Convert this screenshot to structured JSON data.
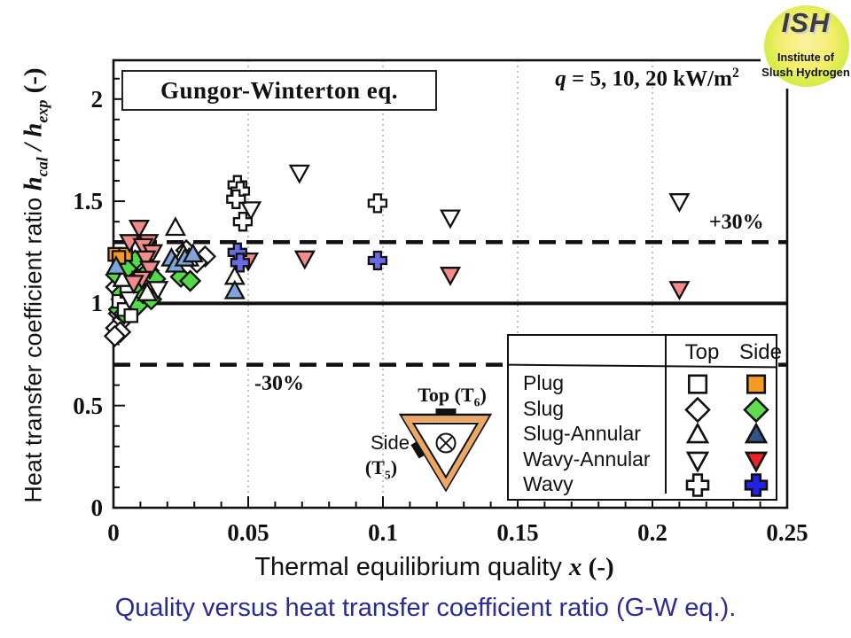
{
  "title_box": "Gungor-Winterton eq.",
  "heat_flux_label": {
    "var": "q",
    "rest": " = 5, 10, 20 kW/m",
    "sup": "2"
  },
  "annotations": {
    "plus30": "+30%",
    "minus30": "-30%"
  },
  "axes": {
    "x": {
      "label_text": "Thermal equilibrium quality ",
      "label_var": "x",
      "label_unit": " (-)",
      "ticks": [
        "0",
        "0.05",
        "0.1",
        "0.15",
        "0.2",
        "0.25"
      ],
      "tick_values": [
        0,
        0.05,
        0.1,
        0.15,
        0.2,
        0.25
      ],
      "minor_step": 0.01
    },
    "y": {
      "label_text": "Heat transfer coefficient ratio ",
      "h1": "h",
      "sub1": "cal",
      "slash": " / ",
      "h2": "h",
      "sub2": "exp",
      "label_unit": " (-)",
      "ticks": [
        "0",
        "0.5",
        "1",
        "1.5",
        "2"
      ],
      "tick_values": [
        0,
        0.5,
        1,
        1.5,
        2
      ],
      "minor_step": 0.1
    }
  },
  "legend": {
    "headers": {
      "top": "Top",
      "side": "Side"
    },
    "rows": [
      {
        "label": "Plug",
        "marker": "square",
        "side_color": "#F59A23"
      },
      {
        "label": "Slug",
        "marker": "diamond",
        "side_color": "#5FDC50"
      },
      {
        "label": "Slug-Annular",
        "marker": "triangle-up",
        "side_color": "#2F5589"
      },
      {
        "label": "Wavy-Annular",
        "marker": "triangle-down",
        "side_color": "#E8232A"
      },
      {
        "label": "Wavy",
        "marker": "cross",
        "side_color": "#2121E8"
      }
    ]
  },
  "inset": {
    "top_main": "Top (T",
    "top_sub": "6",
    "top_close": ")",
    "side_word": "Side",
    "side_main": "(T",
    "side_sub": "5",
    "side_close": ")",
    "tube_border_color": "#EDA765"
  },
  "logo": {
    "title": "ISH",
    "line1": "Institute of",
    "line2": "Slush Hydrogen"
  },
  "caption": "Quality versus heat transfer coefficient ratio (G-W eq.).",
  "chart_data": {
    "type": "scatter",
    "title": "Gungor-Winterton eq.",
    "xlabel": "Thermal equilibrium quality x (-)",
    "ylabel": "Heat transfer coefficient ratio h_cal / h_exp (-)",
    "xlim": [
      0,
      0.25
    ],
    "ylim": [
      0,
      2.19
    ],
    "x_gridlines": [
      0.05,
      0.1,
      0.15,
      0.2
    ],
    "grid": "vertical-dotted",
    "legend_position": "lower-right",
    "reference_lines": [
      {
        "y": 1.0,
        "style": "solid",
        "label": ""
      },
      {
        "y": 1.3,
        "style": "dashed",
        "label": "+30%"
      },
      {
        "y": 0.7,
        "style": "dashed",
        "label": "-30%"
      }
    ],
    "series": [
      {
        "name": "Slug Top",
        "marker": "diamond",
        "fill": "#FFFFFF",
        "points": [
          [
            0.001,
            0.88
          ],
          [
            0.002,
            0.95
          ],
          [
            0.0035,
            0.92
          ],
          [
            0.005,
            1.05
          ],
          [
            0.003,
            1.02
          ],
          [
            0.006,
            0.98
          ],
          [
            0.0075,
            1.0
          ],
          [
            0.001,
            1.08
          ],
          [
            0.0025,
            0.86
          ],
          [
            0.0045,
            1.1
          ],
          [
            0.0085,
            1.06
          ],
          [
            0.0105,
            1.12
          ],
          [
            0.0005,
            0.84
          ],
          [
            0.0075,
            1.13
          ],
          [
            0.027,
            1.26
          ],
          [
            0.034,
            1.23
          ],
          [
            0.031,
            1.2
          ]
        ]
      },
      {
        "name": "Slug Side",
        "marker": "diamond",
        "fill": "#54D948",
        "points": [
          [
            0.008,
            1.21
          ],
          [
            0.005,
            1.17
          ],
          [
            0.013,
            1.16
          ],
          [
            0.009,
            1.12
          ],
          [
            0.025,
            1.13
          ],
          [
            0.0285,
            1.11
          ],
          [
            0.003,
            1.05
          ],
          [
            0.006,
            1.02
          ],
          [
            0.002,
            0.97
          ],
          [
            0.009,
            0.99
          ],
          [
            0.004,
            0.95
          ],
          [
            0.011,
            1.05
          ],
          [
            0.0075,
            1.08
          ],
          [
            0.014,
            1.02
          ],
          [
            0.0155,
            1.12
          ],
          [
            0.001,
            1.14
          ]
        ]
      },
      {
        "name": "Plug Top",
        "marker": "square",
        "fill": "#FFFFFF",
        "points": [
          [
            0.002,
            1.01
          ],
          [
            0.005,
            1.06
          ],
          [
            0.004,
            0.97
          ],
          [
            0.0065,
            0.94
          ]
        ]
      },
      {
        "name": "Plug Side",
        "marker": "square",
        "fill": "#F59A23",
        "points": [
          [
            0.0005,
            1.24
          ],
          [
            0.0045,
            1.24
          ],
          [
            0.002,
            1.225
          ]
        ]
      },
      {
        "name": "Slug-Annular Top",
        "marker": "triangle-up",
        "fill": "#FFFFFF",
        "points": [
          [
            0.023,
            1.37
          ],
          [
            0.026,
            1.24
          ],
          [
            0.028,
            1.22
          ],
          [
            0.045,
            1.13
          ],
          [
            0.0125,
            1.05
          ],
          [
            0.0035,
            1.12
          ]
        ]
      },
      {
        "name": "Slug-Annular Side",
        "marker": "triangle-up",
        "fill": "#7EA4D9",
        "points": [
          [
            0.0215,
            1.22
          ],
          [
            0.023,
            1.19
          ],
          [
            0.0265,
            1.22
          ],
          [
            0.0295,
            1.24
          ],
          [
            0.045,
            1.06
          ],
          [
            0.001,
            1.18
          ]
        ]
      },
      {
        "name": "Wavy-Annular Top",
        "marker": "triangle-down",
        "fill": "#FFFFFF",
        "points": [
          [
            0.069,
            1.64
          ],
          [
            0.051,
            1.46
          ],
          [
            0.125,
            1.42
          ],
          [
            0.21,
            1.5
          ],
          [
            0.0165,
            1.07
          ],
          [
            0.006,
            1.02
          ]
        ]
      },
      {
        "name": "Wavy-Annular Side",
        "marker": "triangle-down",
        "fill": "#F48B8B",
        "points": [
          [
            0.0095,
            1.37
          ],
          [
            0.006,
            1.3
          ],
          [
            0.013,
            1.3
          ],
          [
            0.011,
            1.28
          ],
          [
            0.0145,
            1.25
          ],
          [
            0.012,
            1.22
          ],
          [
            0.0135,
            1.17
          ],
          [
            0.0105,
            1.12
          ],
          [
            0.0075,
            1.1
          ],
          [
            0.05,
            1.21
          ],
          [
            0.071,
            1.22
          ],
          [
            0.125,
            1.14
          ],
          [
            0.21,
            1.07
          ]
        ]
      },
      {
        "name": "Wavy Top",
        "marker": "cross",
        "fill": "#FFFFFF",
        "points": [
          [
            0.046,
            1.58
          ],
          [
            0.047,
            1.55
          ],
          [
            0.0455,
            1.51
          ],
          [
            0.048,
            1.4
          ],
          [
            0.098,
            1.49
          ]
        ]
      },
      {
        "name": "Wavy Side",
        "marker": "cross",
        "fill": "#6A6AE8",
        "points": [
          [
            0.046,
            1.25
          ],
          [
            0.047,
            1.2
          ],
          [
            0.098,
            1.21
          ]
        ]
      }
    ]
  }
}
